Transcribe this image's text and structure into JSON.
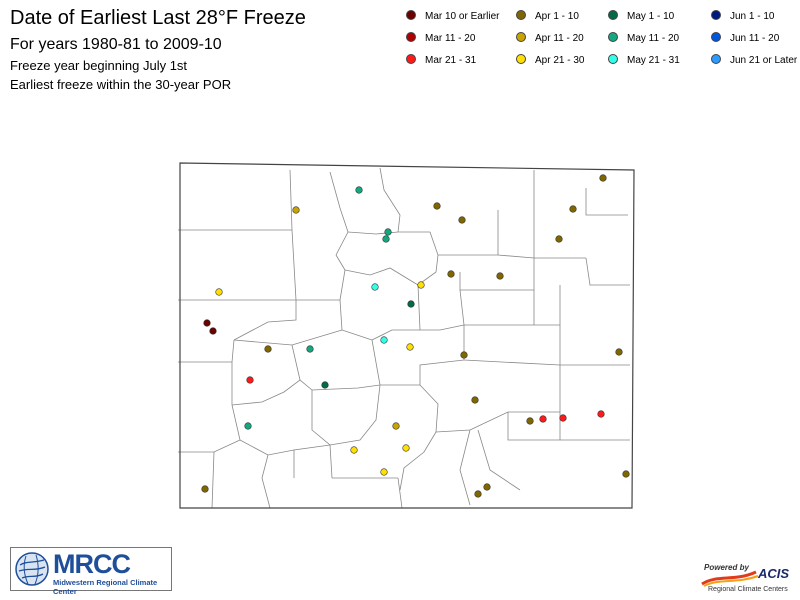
{
  "header": {
    "title": "Date of Earliest Last 28°F Freeze",
    "subtitle": "For years 1980-81 to 2009-10",
    "note1": "Freeze year beginning July 1st",
    "note2": "Earliest freeze within the 30-year POR"
  },
  "legend": [
    {
      "label": "Mar 10 or Earlier",
      "color": "#6b0000"
    },
    {
      "label": "Mar 11 - 20",
      "color": "#b00000"
    },
    {
      "label": "Mar 21 - 31",
      "color": "#ff1a1a"
    },
    {
      "label": "Apr 1 - 10",
      "color": "#806600"
    },
    {
      "label": "Apr 11 - 20",
      "color": "#c9a300"
    },
    {
      "label": "Apr 21 - 30",
      "color": "#ffe000"
    },
    {
      "label": "May 1 - 10",
      "color": "#006b45"
    },
    {
      "label": "May 11 - 20",
      "color": "#14a880"
    },
    {
      "label": "May 21 - 31",
      "color": "#33ffe8"
    },
    {
      "label": "Jun 1 - 10",
      "color": "#001a80"
    },
    {
      "label": "Jun 11 - 20",
      "color": "#0055dd"
    },
    {
      "label": "Jun 21 or Later",
      "color": "#2b9bff"
    }
  ],
  "stations": [
    {
      "category": "Apr 1 - 10"
    },
    {
      "category": "May 11 - 20"
    },
    {
      "category": "Apr 11 - 20"
    },
    {
      "category": "Apr 1 - 10"
    },
    {
      "category": "Apr 1 - 10"
    },
    {
      "category": "Apr 1 - 10"
    },
    {
      "category": "May 11 - 20"
    },
    {
      "category": "May 11 - 20"
    },
    {
      "category": "Apr 1 - 10"
    },
    {
      "category": "Apr 1 - 10"
    },
    {
      "category": "Apr 1 - 10"
    },
    {
      "category": "Apr 21 - 30"
    },
    {
      "category": "May 21 - 31"
    },
    {
      "category": "Apr 21 - 30"
    },
    {
      "category": "May 1 - 10"
    },
    {
      "category": "Mar 10 or Earlier"
    },
    {
      "category": "Mar 10 or Earlier"
    },
    {
      "category": "May 21 - 31"
    },
    {
      "category": "Apr 21 - 30"
    },
    {
      "category": "Apr 1 - 10"
    },
    {
      "category": "May 11 - 20"
    },
    {
      "category": "Apr 1 - 10"
    },
    {
      "category": "Apr 1 - 10"
    },
    {
      "category": "Mar 21 - 31"
    },
    {
      "category": "May 1 - 10"
    },
    {
      "category": "Apr 1 - 10"
    },
    {
      "category": "Mar 21 - 31"
    },
    {
      "category": "Apr 1 - 10"
    },
    {
      "category": "Mar 21 - 31"
    },
    {
      "category": "Mar 21 - 31"
    },
    {
      "category": "May 11 - 20"
    },
    {
      "category": "Apr 11 - 20"
    },
    {
      "category": "Apr 21 - 30"
    },
    {
      "category": "Apr 21 - 30"
    },
    {
      "category": "Apr 21 - 30"
    },
    {
      "category": "Apr 1 - 10"
    },
    {
      "category": "Apr 1 - 10"
    },
    {
      "category": "Apr 1 - 10"
    },
    {
      "category": "Apr 1 - 10"
    }
  ],
  "logos": {
    "mrcc_name": "MRCC",
    "mrcc_tagline": "Midwestern Regional Climate Center",
    "acis_powered": "Powered by",
    "acis_name": "ACIS",
    "acis_tagline": "Regional Climate Centers"
  }
}
